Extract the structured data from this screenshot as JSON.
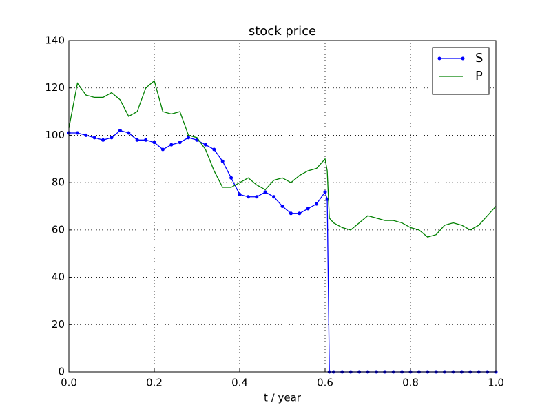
{
  "chart_data": {
    "type": "line",
    "title": "stock price",
    "x_label": "t / year",
    "x": [
      0,
      0.02,
      0.04,
      0.06,
      0.08,
      0.1,
      0.12,
      0.14,
      0.16,
      0.18,
      0.2,
      0.22,
      0.24,
      0.26,
      0.28,
      0.3,
      0.32,
      0.34,
      0.36,
      0.38,
      0.4,
      0.42,
      0.44,
      0.46,
      0.48,
      0.5,
      0.52,
      0.54,
      0.56,
      0.58,
      0.6,
      0.605,
      0.61,
      0.62,
      0.64,
      0.66,
      0.68,
      0.7,
      0.72,
      0.74,
      0.76,
      0.78,
      0.8,
      0.82,
      0.84,
      0.86,
      0.88,
      0.9,
      0.92,
      0.94,
      0.96,
      0.98,
      1.0
    ],
    "series": [
      {
        "name": "S",
        "color": "#0000ff",
        "markers": true,
        "values": [
          101,
          101,
          100,
          99,
          98,
          99,
          102,
          101,
          98,
          98,
          97,
          94,
          96,
          97,
          99,
          98,
          96,
          94,
          89,
          82,
          75,
          74,
          74,
          76,
          74,
          70,
          67,
          67,
          69,
          71,
          76,
          73,
          0,
          0,
          0,
          0,
          0,
          0,
          0,
          0,
          0,
          0,
          0,
          0,
          0,
          0,
          0,
          0,
          0,
          0,
          0,
          0,
          0
        ]
      },
      {
        "name": "P",
        "color": "#008000",
        "markers": false,
        "values": [
          103,
          122,
          117,
          116,
          116,
          118,
          115,
          108,
          110,
          120,
          123,
          110,
          109,
          110,
          100,
          99,
          94,
          85,
          78,
          78,
          80,
          82,
          79,
          77,
          81,
          82,
          80,
          83,
          85,
          86,
          90,
          85,
          65,
          63,
          61,
          60,
          63,
          66,
          65,
          64,
          64,
          63,
          61,
          60,
          57,
          58,
          62,
          63,
          62,
          60,
          62,
          66,
          70
        ]
      }
    ],
    "xlim": [
      0,
      1
    ],
    "ylim": [
      0,
      140
    ],
    "xticks": [
      {
        "value": 0,
        "label": "0.0"
      },
      {
        "value": 0.2,
        "label": "0.2"
      },
      {
        "value": 0.4,
        "label": "0.4"
      },
      {
        "value": 0.6,
        "label": "0.6"
      },
      {
        "value": 0.8,
        "label": "0.8"
      },
      {
        "value": 1,
        "label": "1.0"
      }
    ],
    "yticks": [
      0,
      20,
      40,
      60,
      80,
      100,
      120,
      140
    ],
    "grid": true,
    "legend": "upper-right"
  }
}
